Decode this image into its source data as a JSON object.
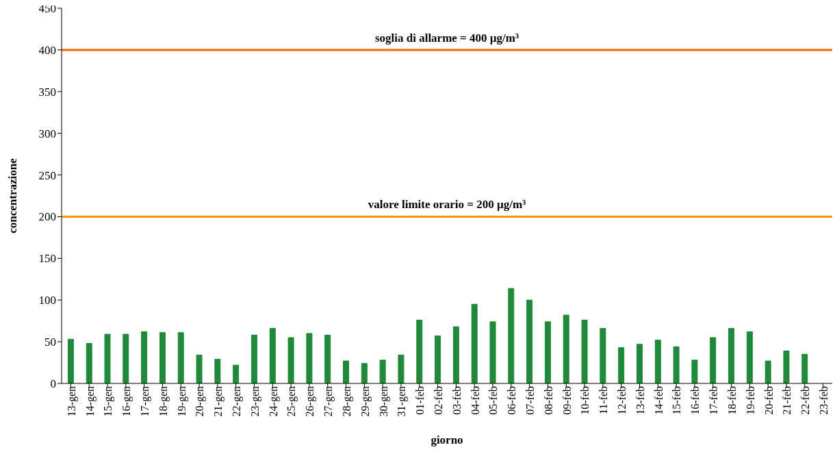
{
  "chart_data": {
    "type": "bar",
    "xlabel": "giorno",
    "ylabel": "concentrazione",
    "categories": [
      "13-gen",
      "14-gen",
      "15-gen",
      "16-gen",
      "17-gen",
      "18-gen",
      "19-gen",
      "20-gen",
      "21-gen",
      "22-gen",
      "23-gen",
      "24-gen",
      "25-gen",
      "26-gen",
      "27-gen",
      "28-gen",
      "29-gen",
      "30-gen",
      "31-gen",
      "01-feb",
      "02-feb",
      "03-feb",
      "04-feb",
      "05-feb",
      "06-feb",
      "07-feb",
      "08-feb",
      "09-feb",
      "10-feb",
      "11-feb",
      "12-feb",
      "13-feb",
      "14-feb",
      "15-feb",
      "16-feb",
      "17-feb",
      "18-feb",
      "19-feb",
      "20-feb",
      "21-feb",
      "22-feb",
      "23-feb"
    ],
    "values": [
      53,
      48,
      59,
      59,
      62,
      61,
      61,
      34,
      29,
      22,
      58,
      66,
      55,
      60,
      58,
      27,
      24,
      28,
      34,
      76,
      57,
      68,
      95,
      74,
      114,
      100,
      74,
      82,
      76,
      66,
      43,
      47,
      52,
      44,
      28,
      55,
      66,
      62,
      27,
      39,
      35,
      null
    ],
    "color": "#1f8a3a",
    "ylim": [
      0,
      450
    ],
    "yticks": [
      0,
      50,
      100,
      150,
      200,
      250,
      300,
      350,
      400,
      450
    ],
    "grid": false,
    "legend": false,
    "ref_lines": [
      {
        "axis": "y",
        "value": 400,
        "label": "soglia di allarme = 400 µg/m³",
        "color": "#ff6600"
      },
      {
        "axis": "y",
        "value": 200,
        "label": "valore limite orario = 200 µg/m³",
        "color": "#ff9900"
      }
    ]
  }
}
